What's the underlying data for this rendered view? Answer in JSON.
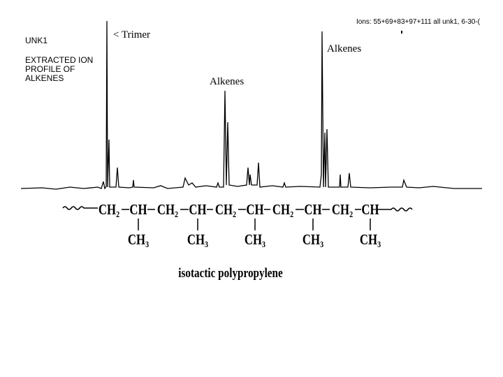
{
  "header": {
    "ions": "Ions: 55+69+83+97+111 all unk1,   6-30-(",
    "sample": "UNK1",
    "description": [
      "EXTRACTED ION",
      "PROFILE OF",
      "ALKENES"
    ]
  },
  "annotations": [
    "< Trimer",
    "Alkenes",
    "Alkenes"
  ],
  "structure": {
    "backbone": [
      "CH₂",
      "CH",
      "CH₂",
      "CH",
      "CH₂",
      "CH",
      "CH₂",
      "CH",
      "CH₂",
      "CH"
    ],
    "substituents": [
      "CH₃",
      "CH₃",
      "CH₃",
      "CH₃",
      "CH₃"
    ],
    "caption": "isotactic polypropylene"
  }
}
